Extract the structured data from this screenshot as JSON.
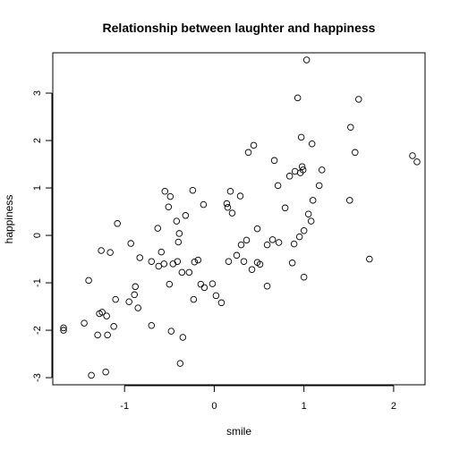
{
  "chart_data": {
    "type": "scatter",
    "title": "Relationship between laughter and happiness",
    "xlabel": "smile",
    "ylabel": "happiness",
    "xlim": [
      -1.8,
      2.35
    ],
    "ylim": [
      -3.15,
      3.85
    ],
    "x_ticks": [
      -1,
      0,
      1,
      2
    ],
    "y_ticks": [
      -3,
      -2,
      -1,
      0,
      1,
      2,
      3
    ],
    "grid": false,
    "points": [
      {
        "x": -1.68,
        "y": -2.0
      },
      {
        "x": -1.68,
        "y": -1.95
      },
      {
        "x": -1.45,
        "y": -1.85
      },
      {
        "x": -1.4,
        "y": -0.95
      },
      {
        "x": -1.37,
        "y": -2.95
      },
      {
        "x": -1.3,
        "y": -2.1
      },
      {
        "x": -1.28,
        "y": -1.65
      },
      {
        "x": -1.26,
        "y": -0.32
      },
      {
        "x": -1.25,
        "y": -1.62
      },
      {
        "x": -1.21,
        "y": -2.88
      },
      {
        "x": -1.2,
        "y": -1.7
      },
      {
        "x": -1.19,
        "y": -2.1
      },
      {
        "x": -1.16,
        "y": -0.36
      },
      {
        "x": -1.12,
        "y": -1.92
      },
      {
        "x": -1.1,
        "y": -1.35
      },
      {
        "x": -1.08,
        "y": 0.25
      },
      {
        "x": -0.95,
        "y": -1.4
      },
      {
        "x": -0.93,
        "y": -0.17
      },
      {
        "x": -0.89,
        "y": -1.25
      },
      {
        "x": -0.88,
        "y": -1.08
      },
      {
        "x": -0.85,
        "y": -1.53
      },
      {
        "x": -0.83,
        "y": -0.47
      },
      {
        "x": -0.7,
        "y": -0.55
      },
      {
        "x": -0.7,
        "y": -1.9
      },
      {
        "x": -0.63,
        "y": 0.15
      },
      {
        "x": -0.62,
        "y": -0.65
      },
      {
        "x": -0.59,
        "y": -0.35
      },
      {
        "x": -0.56,
        "y": -0.6
      },
      {
        "x": -0.55,
        "y": 0.93
      },
      {
        "x": -0.51,
        "y": 0.6
      },
      {
        "x": -0.5,
        "y": -1.03
      },
      {
        "x": -0.49,
        "y": 0.82
      },
      {
        "x": -0.48,
        "y": -2.02
      },
      {
        "x": -0.46,
        "y": -0.6
      },
      {
        "x": -0.42,
        "y": 0.3
      },
      {
        "x": -0.41,
        "y": -0.55
      },
      {
        "x": -0.4,
        "y": -0.14
      },
      {
        "x": -0.39,
        "y": 0.04
      },
      {
        "x": -0.38,
        "y": -2.7
      },
      {
        "x": -0.36,
        "y": -0.78
      },
      {
        "x": -0.35,
        "y": -2.15
      },
      {
        "x": -0.32,
        "y": 0.42
      },
      {
        "x": -0.28,
        "y": -0.78
      },
      {
        "x": -0.24,
        "y": 0.95
      },
      {
        "x": -0.23,
        "y": -1.35
      },
      {
        "x": -0.22,
        "y": -0.56
      },
      {
        "x": -0.18,
        "y": -0.52
      },
      {
        "x": -0.15,
        "y": -1.03
      },
      {
        "x": -0.12,
        "y": 0.65
      },
      {
        "x": -0.11,
        "y": -1.1
      },
      {
        "x": -0.02,
        "y": -1.02
      },
      {
        "x": 0.02,
        "y": -1.27
      },
      {
        "x": 0.08,
        "y": -1.42
      },
      {
        "x": 0.14,
        "y": 0.67
      },
      {
        "x": 0.15,
        "y": 0.59
      },
      {
        "x": 0.16,
        "y": -0.55
      },
      {
        "x": 0.18,
        "y": 0.93
      },
      {
        "x": 0.2,
        "y": 0.47
      },
      {
        "x": 0.25,
        "y": -0.42
      },
      {
        "x": 0.29,
        "y": 0.83
      },
      {
        "x": 0.3,
        "y": -0.2
      },
      {
        "x": 0.33,
        "y": -0.55
      },
      {
        "x": 0.36,
        "y": -0.1
      },
      {
        "x": 0.38,
        "y": 1.75
      },
      {
        "x": 0.42,
        "y": -0.72
      },
      {
        "x": 0.44,
        "y": 1.9
      },
      {
        "x": 0.48,
        "y": 0.14
      },
      {
        "x": 0.48,
        "y": -0.57
      },
      {
        "x": 0.51,
        "y": -0.61
      },
      {
        "x": 0.59,
        "y": -1.07
      },
      {
        "x": 0.59,
        "y": -0.2
      },
      {
        "x": 0.65,
        "y": -0.09
      },
      {
        "x": 0.67,
        "y": 1.58
      },
      {
        "x": 0.71,
        "y": 1.05
      },
      {
        "x": 0.72,
        "y": -0.15
      },
      {
        "x": 0.79,
        "y": 0.58
      },
      {
        "x": 0.84,
        "y": 1.25
      },
      {
        "x": 0.87,
        "y": -0.58
      },
      {
        "x": 0.89,
        "y": -0.18
      },
      {
        "x": 0.9,
        "y": 1.35
      },
      {
        "x": 0.93,
        "y": 2.9
      },
      {
        "x": 0.95,
        "y": -0.03
      },
      {
        "x": 0.96,
        "y": 1.32
      },
      {
        "x": 0.97,
        "y": 2.07
      },
      {
        "x": 0.98,
        "y": 1.45
      },
      {
        "x": 0.99,
        "y": 1.38
      },
      {
        "x": 1.0,
        "y": 0.1
      },
      {
        "x": 1.0,
        "y": -0.88
      },
      {
        "x": 1.03,
        "y": 3.7
      },
      {
        "x": 1.05,
        "y": 0.45
      },
      {
        "x": 1.08,
        "y": 0.3
      },
      {
        "x": 1.09,
        "y": 1.93
      },
      {
        "x": 1.1,
        "y": 0.74
      },
      {
        "x": 1.17,
        "y": 1.05
      },
      {
        "x": 1.2,
        "y": 1.38
      },
      {
        "x": 1.51,
        "y": 0.74
      },
      {
        "x": 1.52,
        "y": 2.28
      },
      {
        "x": 1.57,
        "y": 1.75
      },
      {
        "x": 1.61,
        "y": 2.87
      },
      {
        "x": 1.73,
        "y": -0.5
      },
      {
        "x": 2.21,
        "y": 1.68
      },
      {
        "x": 2.26,
        "y": 1.55
      }
    ]
  }
}
